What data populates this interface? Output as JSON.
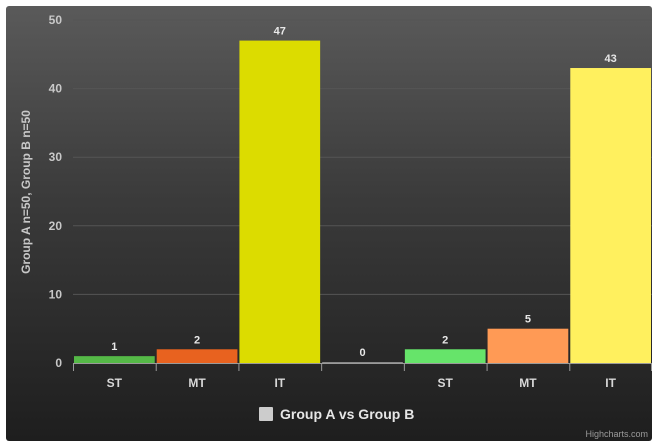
{
  "chart_data": {
    "type": "bar",
    "categories": [
      "ST",
      "MT",
      "IT",
      "",
      "ST",
      "MT",
      "IT"
    ],
    "values": [
      1,
      2,
      47,
      0,
      2,
      5,
      43
    ],
    "colors": [
      "#55b947",
      "#e8621f",
      "#dcdc00",
      "#888888",
      "#66e46a",
      "#ff9a55",
      "#fff05e"
    ],
    "ylabel": "Group A n=50, Group B n=50",
    "xlabel": "",
    "ylim": [
      0,
      50
    ],
    "yticks": [
      0,
      10,
      20,
      30,
      40,
      50
    ],
    "grid": true,
    "legend": {
      "label": "Group A vs Group B",
      "color": "#cccccc",
      "placement": "bottom-center"
    }
  },
  "credits": "Highcharts.com"
}
